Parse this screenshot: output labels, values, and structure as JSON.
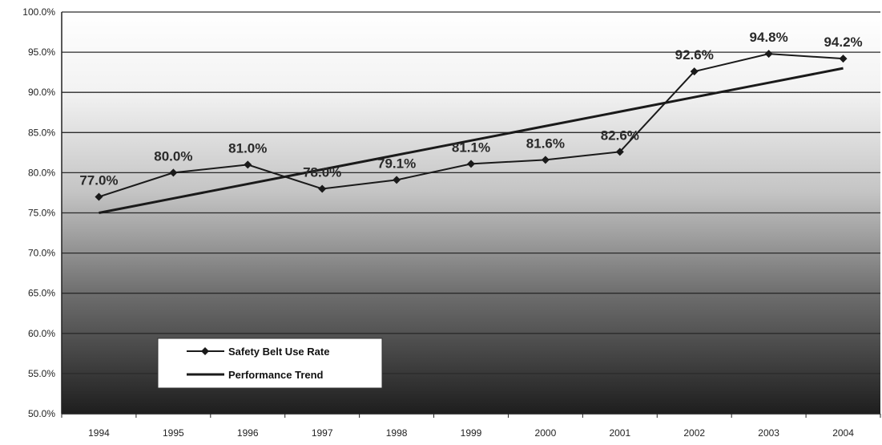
{
  "chart_data": {
    "type": "line",
    "title": "",
    "xlabel": "",
    "ylabel": "",
    "x": [
      "1994",
      "1995",
      "1996",
      "1997",
      "1998",
      "1999",
      "2000",
      "2001",
      "2002",
      "2003",
      "2004"
    ],
    "y_ticks": [
      "100.0%",
      "95.0%",
      "90.0%",
      "85.0%",
      "80.0%",
      "75.0%",
      "70.0%",
      "65.0%",
      "60.0%",
      "55.0%",
      "50.0%"
    ],
    "ylim": [
      50,
      100
    ],
    "grid": true,
    "legend_position": "bottom-left",
    "series": [
      {
        "name": "Safety Belt Use Rate",
        "values": [
          77.0,
          80.0,
          81.0,
          78.0,
          79.1,
          81.1,
          81.6,
          82.6,
          92.6,
          94.8,
          94.2
        ],
        "labels": [
          "77.0%",
          "80.0%",
          "81.0%",
          "78.0%",
          "79.1%",
          "81.1%",
          "81.6%",
          "82.6%",
          "92.6%",
          "94.8%",
          "94.2%"
        ],
        "marker": "diamond",
        "color": "#1a1a1a"
      },
      {
        "name": "Performance Trend",
        "values": [
          75.0,
          76.8,
          78.6,
          80.4,
          82.2,
          84.0,
          85.8,
          87.6,
          89.4,
          91.2,
          93.0
        ],
        "color": "#1a1a1a"
      }
    ]
  },
  "colors": {
    "background_top": "#ffffff",
    "background_bottom": "#1e1e1e",
    "gridline": "#2a2a2a",
    "line": "#1a1a1a"
  }
}
